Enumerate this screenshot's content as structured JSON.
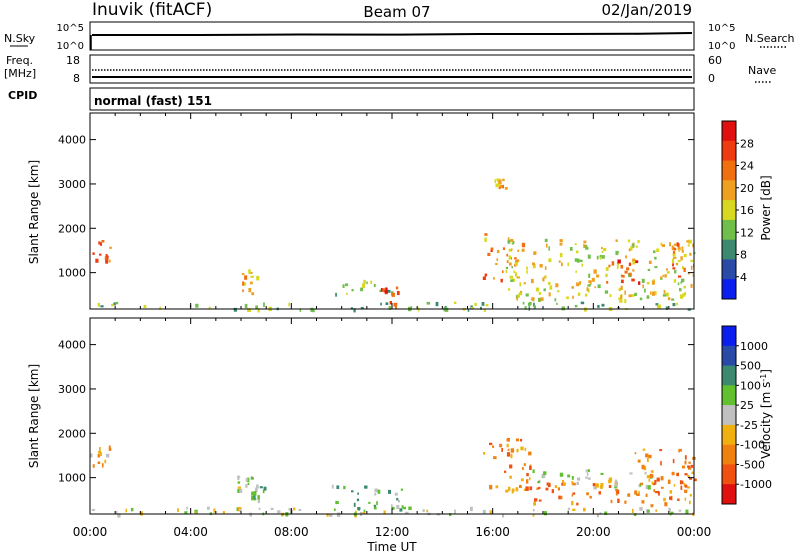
{
  "header": {
    "station": "Inuvik (fitACF)",
    "beam": "Beam 07",
    "date": "02/Jan/2019"
  },
  "strips": {
    "nsky_label": "N.Sky",
    "nsky_ticks": [
      "10^5",
      "10^0"
    ],
    "nsearch_label": "N.Search",
    "nsearch_ticks": [
      "10^5",
      "10^0"
    ],
    "freq_label_1": "Freq.",
    "freq_label_2": "[MHz]",
    "freq_ticks": [
      "18",
      "8"
    ],
    "nave_label": "Nave",
    "nave_ticks": [
      "60",
      "0"
    ],
    "cpid_label": "CPID",
    "cpid_text": "normal (fast) 151"
  },
  "colors": {
    "power": [
      "#0a1ef0",
      "#2a4aa8",
      "#3b8a70",
      "#6fbf4a",
      "#d8d820",
      "#f0a020",
      "#f07010",
      "#f03a10",
      "#e01010"
    ],
    "velocity": [
      "#e01010",
      "#f05010",
      "#f08010",
      "#f0b010",
      "#c0c0c0",
      "#60c030",
      "#3b8a70",
      "#2a4aa8",
      "#0a1ef0"
    ]
  },
  "chart_data": [
    {
      "type": "heatmap",
      "name": "power",
      "xlabel": "Time UT",
      "ylabel": "Slant Range [km]",
      "x_ticks": [
        "00:00",
        "04:00",
        "08:00",
        "12:00",
        "16:00",
        "20:00",
        "00:00"
      ],
      "x_range_hours": [
        0,
        24
      ],
      "y_ticks": [
        1000,
        2000,
        3000,
        4000
      ],
      "y_range_km": [
        180,
        4600
      ],
      "colorbar": {
        "label": "Power [dB]",
        "ticks": [
          "4",
          "8",
          "12",
          "16",
          "20",
          "24",
          "28"
        ],
        "range": [
          0,
          32
        ]
      },
      "regions": [
        {
          "t0": 0.0,
          "t1": 0.9,
          "r0": 1200,
          "r1": 1750,
          "level": 24
        },
        {
          "t0": 5.8,
          "t1": 6.8,
          "r0": 550,
          "r1": 1100,
          "level": 20
        },
        {
          "t0": 9.5,
          "t1": 12.0,
          "r0": 500,
          "r1": 850,
          "level": 14
        },
        {
          "t0": 11.5,
          "t1": 12.2,
          "r0": 180,
          "r1": 700,
          "level": 28
        },
        {
          "t0": 15.6,
          "t1": 17.2,
          "r0": 800,
          "r1": 1900,
          "level": 22
        },
        {
          "t0": 16.0,
          "t1": 16.5,
          "r0": 2900,
          "r1": 3150,
          "level": 20
        },
        {
          "t0": 16.5,
          "t1": 24.0,
          "r0": 400,
          "r1": 1800,
          "level": 16
        },
        {
          "t0": 20.5,
          "t1": 21.8,
          "r0": 800,
          "r1": 1400,
          "level": 27
        },
        {
          "t0": 23.0,
          "t1": 24.0,
          "r0": 900,
          "r1": 1700,
          "level": 24
        },
        {
          "t0": 0.0,
          "t1": 24.0,
          "r0": 180,
          "r1": 350,
          "level": 12
        }
      ]
    },
    {
      "type": "heatmap",
      "name": "velocity",
      "xlabel": "Time UT",
      "ylabel": "Slant Range [km]",
      "x_ticks": [
        "00:00",
        "04:00",
        "08:00",
        "12:00",
        "16:00",
        "20:00",
        "00:00"
      ],
      "x_range_hours": [
        0,
        24
      ],
      "y_ticks": [
        1000,
        2000,
        3000,
        4000
      ],
      "y_range_km": [
        180,
        4600
      ],
      "colorbar": {
        "label": "Velocity [m s^-1]",
        "ticks": [
          "1000",
          "500",
          "100",
          "25",
          "-25",
          "-100",
          "-500",
          "-1000"
        ]
      },
      "regions": [
        {
          "t0": 0.0,
          "t1": 0.9,
          "r0": 1200,
          "r1": 1750,
          "level": 3
        },
        {
          "t0": 5.8,
          "t1": 6.4,
          "r0": 700,
          "r1": 1100,
          "level": 4
        },
        {
          "t0": 6.4,
          "t1": 6.9,
          "r0": 500,
          "r1": 900,
          "level": 5
        },
        {
          "t0": 9.5,
          "t1": 12.5,
          "r0": 300,
          "r1": 850,
          "level": 5
        },
        {
          "t0": 15.6,
          "t1": 17.5,
          "r0": 700,
          "r1": 1900,
          "level": 2
        },
        {
          "t0": 17.5,
          "t1": 22.5,
          "r0": 800,
          "r1": 1200,
          "level": 4
        },
        {
          "t0": 17.5,
          "t1": 24.0,
          "r0": 400,
          "r1": 900,
          "level": 2
        },
        {
          "t0": 21.5,
          "t1": 24.0,
          "r0": 800,
          "r1": 1700,
          "level": 2
        },
        {
          "t0": 0.0,
          "t1": 24.0,
          "r0": 180,
          "r1": 350,
          "level": 4
        }
      ]
    }
  ]
}
